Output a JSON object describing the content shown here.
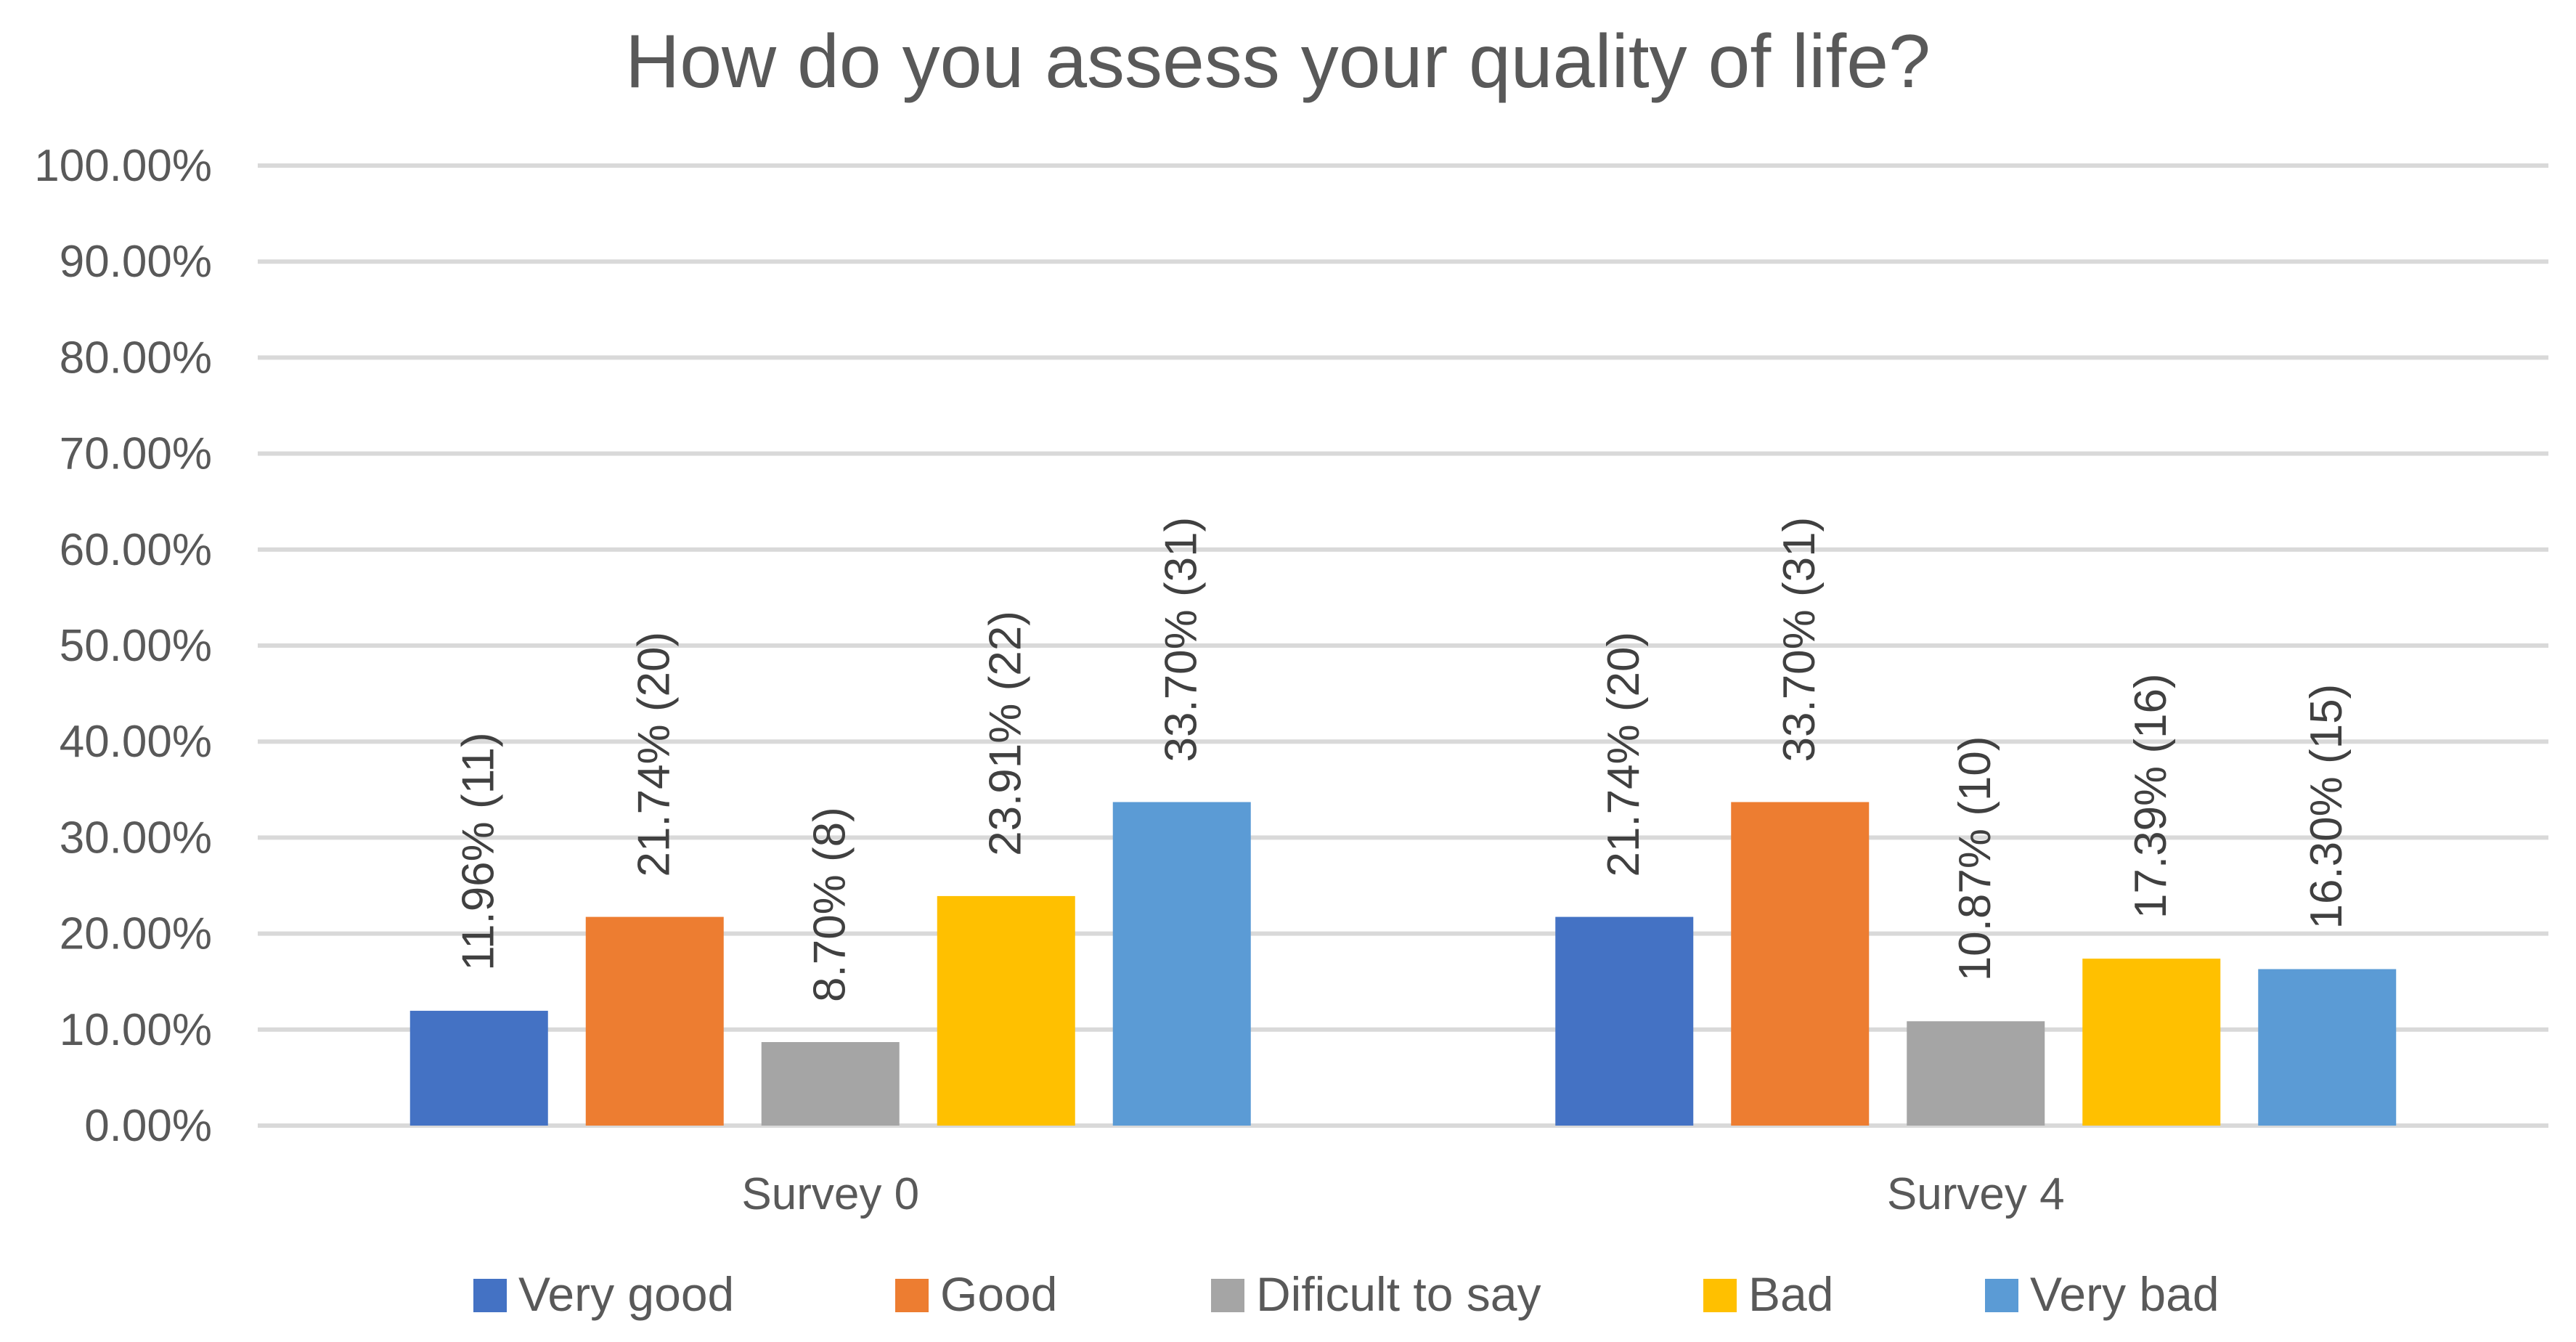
{
  "chart_data": {
    "type": "bar",
    "title": "How do you assess your quality of life?",
    "xlabel": "",
    "ylabel": "",
    "ylim": [
      0,
      100
    ],
    "y_ticks": [
      {
        "value": 0,
        "label": "0.00%"
      },
      {
        "value": 10,
        "label": "10.00%"
      },
      {
        "value": 20,
        "label": "20.00%"
      },
      {
        "value": 30,
        "label": "30.00%"
      },
      {
        "value": 40,
        "label": "40.00%"
      },
      {
        "value": 50,
        "label": "50.00%"
      },
      {
        "value": 60,
        "label": "60.00%"
      },
      {
        "value": 70,
        "label": "70.00%"
      },
      {
        "value": 80,
        "label": "80.00%"
      },
      {
        "value": 90,
        "label": "90.00%"
      },
      {
        "value": 100,
        "label": "100.00%"
      }
    ],
    "grid": true,
    "legend_position": "bottom",
    "categories": [
      "Survey 0",
      "Survey 4"
    ],
    "series": [
      {
        "name": "Very good",
        "color": "#4472c4",
        "values": [
          11.96,
          21.74
        ],
        "labels": [
          "11.96% (11)",
          "21.74% (20)"
        ]
      },
      {
        "name": "Good",
        "color": "#ed7d31",
        "values": [
          21.74,
          33.7
        ],
        "labels": [
          "21.74% (20)",
          "33.70% (31)"
        ]
      },
      {
        "name": "Dificult to say",
        "color": "#a5a5a5",
        "values": [
          8.7,
          10.87
        ],
        "labels": [
          "8.70% (8)",
          "10.87% (10)"
        ]
      },
      {
        "name": "Bad",
        "color": "#ffc000",
        "values": [
          23.91,
          17.39
        ],
        "labels": [
          "23.91% (22)",
          "17.39% (16)"
        ]
      },
      {
        "name": "Very bad",
        "color": "#5b9bd5",
        "values": [
          33.7,
          16.3
        ],
        "labels": [
          "33.70% (31)",
          "16.30% (15)"
        ]
      }
    ]
  }
}
